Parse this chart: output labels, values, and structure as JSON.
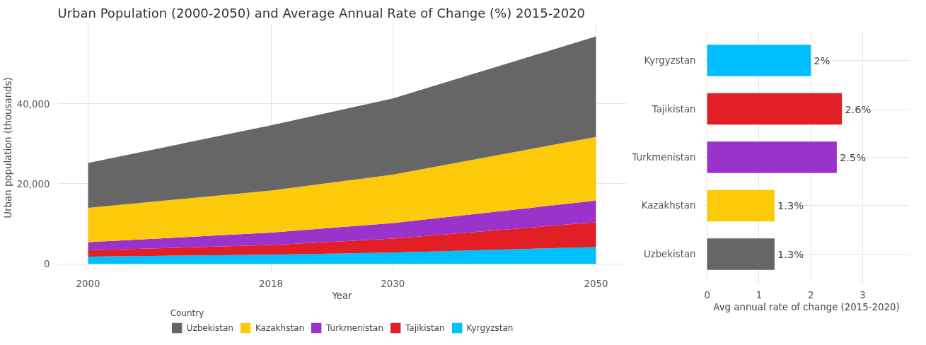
{
  "chart_data": [
    {
      "type": "area",
      "stacked": true,
      "title": "Urban Population (2000-2050) and Average Annual Rate of Change (%) 2015-2020",
      "xlabel": "Year",
      "ylabel": "Urban population (thousands)",
      "legend_title": "Country",
      "legend": "bottom",
      "grid": true,
      "x": [
        2000,
        2018,
        2030,
        2050
      ],
      "xlim": [
        1997,
        2053
      ],
      "xticks": [
        2000,
        2018,
        2030,
        2050
      ],
      "ylim": [
        -2000,
        60000
      ],
      "yticks": [
        0,
        {
          "value": 20000,
          "label": "20,000"
        },
        {
          "value": 40000,
          "label": "40,000"
        }
      ],
      "series": [
        {
          "name": "Kyrgyzstan",
          "color": "#00bfff",
          "values": [
            1800,
            2300,
            2800,
            4200
          ]
        },
        {
          "name": "Tajikistan",
          "color": "#e31f26",
          "values": [
            1600,
            2400,
            3500,
            6200
          ]
        },
        {
          "name": "Turkmenistan",
          "color": "#9933cc",
          "values": [
            2000,
            3100,
            3900,
            5400
          ]
        },
        {
          "name": "Kazakhstan",
          "color": "#fcc90b",
          "values": [
            8600,
            10500,
            12100,
            15900
          ]
        },
        {
          "name": "Uzbekistan",
          "color": "#666666",
          "values": [
            11200,
            16300,
            19000,
            25100
          ]
        }
      ]
    },
    {
      "type": "bar",
      "orientation": "horizontal",
      "xlabel": "Avg annual rate of change (2015-2020)",
      "grid": true,
      "categories": [
        "Kyrgyzstan",
        "Tajikistan",
        "Turkmenistan",
        "Kazakhstan",
        "Uzbekistan"
      ],
      "values": [
        2,
        2.6,
        2.5,
        1.3,
        1.3
      ],
      "colors": [
        "#00bfff",
        "#e31f26",
        "#9933cc",
        "#fcc90b",
        "#666666"
      ],
      "value_labels": [
        "2%",
        "2.6%",
        "2.5%",
        "1.3%",
        "1.3%"
      ],
      "xlim": [
        -0.07,
        3.9
      ],
      "xticks": [
        0,
        1,
        2,
        3
      ]
    }
  ]
}
